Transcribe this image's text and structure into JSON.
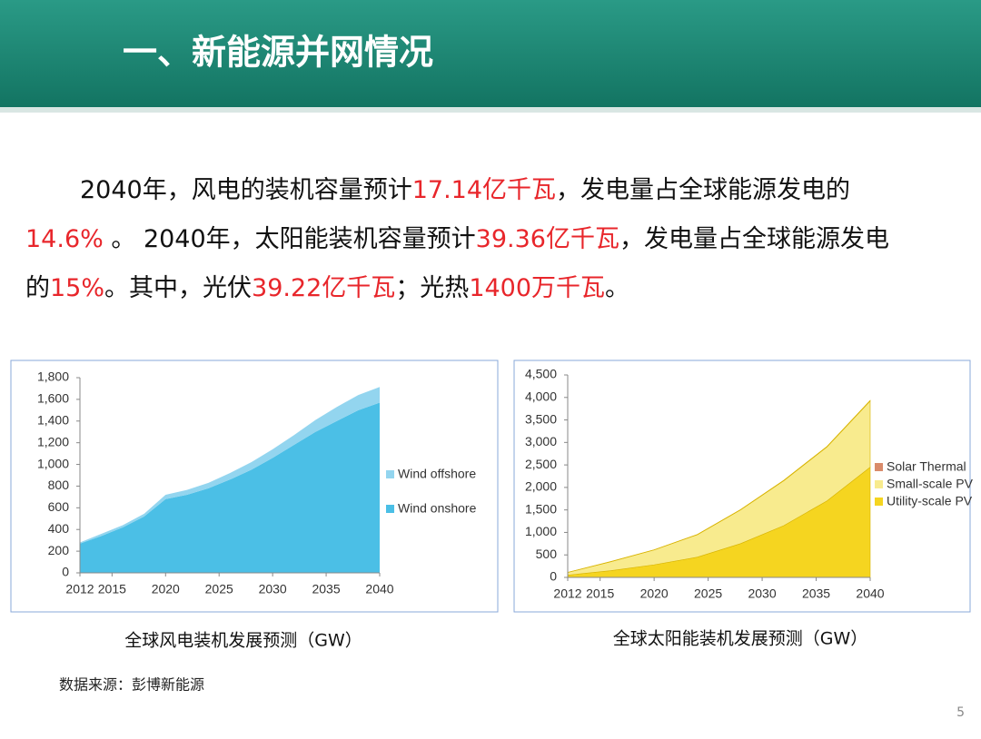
{
  "header": {
    "title": "一、新能源并网情况"
  },
  "body": {
    "lines": [
      [
        {
          "text": "2040年，风电的装机容量预计"
        },
        {
          "text": "17.14亿千瓦",
          "color": "#e8262b"
        },
        {
          "text": "，发电量占全球能源发电的"
        }
      ],
      [
        {
          "text": "14.6%",
          "color": "#e8262b"
        },
        {
          "text": " 。 2040年，太阳能装机容量预计"
        },
        {
          "text": "39.36亿千瓦",
          "color": "#e8262b"
        },
        {
          "text": "，发电量占全球能源发电"
        }
      ],
      [
        {
          "text": "的"
        },
        {
          "text": "15%",
          "color": "#e8262b"
        },
        {
          "text": "。其中，光伏"
        },
        {
          "text": "39.22亿千瓦",
          "color": "#e8262b"
        },
        {
          "text": "；光热"
        },
        {
          "text": "1400万千瓦",
          "color": "#e8262b"
        },
        {
          "text": "。"
        }
      ]
    ]
  },
  "chart_data": [
    {
      "type": "stacked-area",
      "title": "全球风电装机发展预测（GW）",
      "x": [
        2012,
        2014,
        2016,
        2018,
        2020,
        2022,
        2024,
        2026,
        2028,
        2030,
        2032,
        2034,
        2036,
        2038,
        2040
      ],
      "series": [
        {
          "name": "Wind onshore",
          "color": "#4bbfe6",
          "values": [
            270,
            340,
            420,
            520,
            680,
            720,
            780,
            860,
            950,
            1060,
            1180,
            1300,
            1400,
            1500,
            1570
          ]
        },
        {
          "name": "Wind offshore",
          "color": "#93d5ef",
          "values": [
            10,
            20,
            20,
            25,
            40,
            45,
            50,
            60,
            70,
            80,
            90,
            110,
            130,
            140,
            144
          ]
        }
      ],
      "xlim": [
        2012,
        2040
      ],
      "xticks": [
        2012,
        2015,
        2020,
        2025,
        2030,
        2035,
        2040
      ],
      "ylim": [
        0,
        1800
      ],
      "yticks": [
        0,
        200,
        400,
        600,
        800,
        {
          "value": 1000,
          "label": "1,000"
        },
        {
          "value": 1200,
          "label": "1,200"
        },
        {
          "value": 1400,
          "label": "1,400"
        },
        {
          "value": 1600,
          "label": "1,600"
        },
        {
          "value": 1800,
          "label": "1,800"
        }
      ]
    },
    {
      "type": "stacked-area",
      "title": "全球太阳能装机发展预测（GW）",
      "x": [
        2012,
        2016,
        2020,
        2024,
        2028,
        2032,
        2036,
        2040
      ],
      "series": [
        {
          "name": "Utility-scale PV",
          "color": "#f5d520",
          "values": [
            50,
            150,
            280,
            450,
            750,
            1150,
            1700,
            2450
          ]
        },
        {
          "name": "Small-scale PV",
          "color": "#f8eb8e",
          "values": [
            60,
            200,
            330,
            500,
            750,
            1000,
            1200,
            1472
          ]
        },
        {
          "name": "Solar Thermal",
          "color": "#d98b6b",
          "values": [
            3,
            4,
            5,
            6,
            8,
            10,
            12,
            14
          ]
        }
      ],
      "xlim": [
        2012,
        2040
      ],
      "xticks": [
        2012,
        2015,
        2020,
        2025,
        2030,
        2035,
        2040
      ],
      "ylim": [
        0,
        4500
      ],
      "yticks": [
        0,
        500,
        {
          "value": 1000,
          "label": "1,000"
        },
        {
          "value": 1500,
          "label": "1,500"
        },
        {
          "value": 2000,
          "label": "2,000"
        },
        {
          "value": 2500,
          "label": "2,500"
        },
        {
          "value": 3000,
          "label": "3,000"
        },
        {
          "value": 3500,
          "label": "3,500"
        },
        {
          "value": 4000,
          "label": "4,000"
        },
        {
          "value": 4500,
          "label": "4,500"
        }
      ]
    }
  ],
  "source": "数据来源：彭博新能源",
  "page_number": "5"
}
